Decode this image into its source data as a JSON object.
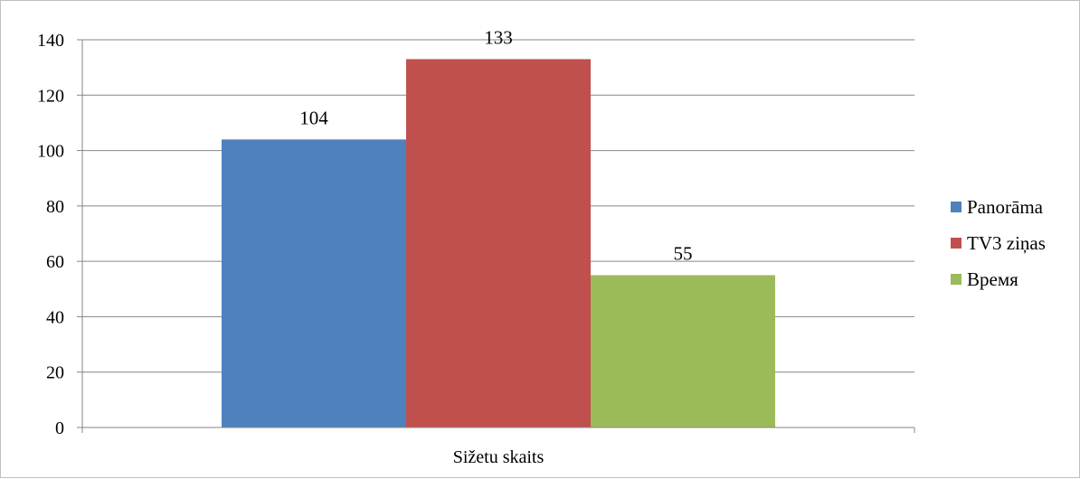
{
  "chart_data": {
    "type": "bar",
    "categories": [
      "Sižetu skaits"
    ],
    "series": [
      {
        "name": "Panorāma",
        "values": [
          104
        ],
        "color": "#4f81bd"
      },
      {
        "name": "TV3 ziņas",
        "values": [
          133
        ],
        "color": "#c0504d"
      },
      {
        "name": "Время",
        "values": [
          55
        ],
        "color": "#9bbb59"
      }
    ],
    "ylim": [
      0,
      140
    ],
    "yticks": [
      0,
      20,
      40,
      60,
      80,
      100,
      120,
      140
    ],
    "grid": true,
    "legend": "right",
    "data_labels": true
  }
}
